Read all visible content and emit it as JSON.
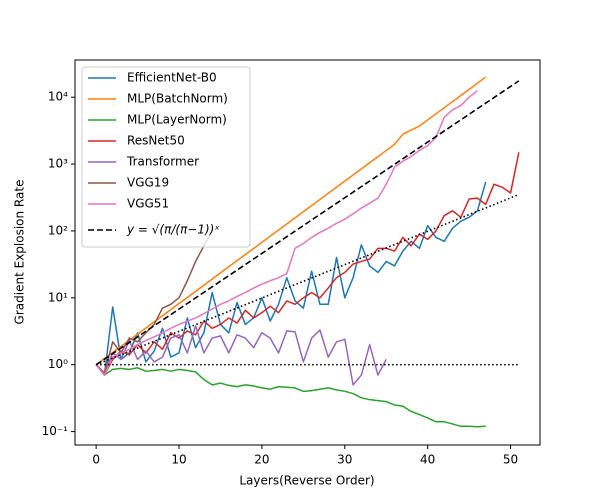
{
  "chart_data": {
    "type": "line",
    "xlabel": "Layers(Reverse Order)",
    "ylabel": "Gradient Explosion Rate",
    "xlim": [
      -2.55,
      53.55
    ],
    "xticks": [
      0,
      10,
      20,
      30,
      40,
      50
    ],
    "ylim": [
      0.063,
      36000
    ],
    "log_y": true,
    "yticks": [
      {
        "value": 0.1,
        "label": "10⁻¹"
      },
      {
        "value": 1,
        "label": "10⁰"
      },
      {
        "value": 10,
        "label": "10¹"
      },
      {
        "value": 100,
        "label": "10²"
      },
      {
        "value": 1000,
        "label": "10³"
      },
      {
        "value": 10000,
        "label": "10⁴"
      }
    ],
    "legend": "upper left",
    "series": [
      {
        "name": "EfficientNet-B0",
        "color": "#1f77b4",
        "linestyle": "solid",
        "x": [
          0,
          1,
          2,
          3,
          4,
          5,
          6,
          7,
          8,
          9,
          10,
          11,
          12,
          13,
          14,
          15,
          16,
          17,
          18,
          19,
          20,
          21,
          22,
          23,
          24,
          25,
          26,
          27,
          28,
          29,
          30,
          31,
          32,
          33,
          34,
          35,
          36,
          37,
          38,
          39,
          40,
          41,
          42,
          43,
          44,
          45,
          46,
          47
        ],
        "values": [
          1,
          0.7,
          7.3,
          1.2,
          1.5,
          3,
          1.1,
          1.6,
          3.5,
          1.3,
          1.5,
          5,
          1.8,
          3,
          12,
          4,
          3,
          8.5,
          4,
          5,
          10,
          4.5,
          8,
          20,
          9,
          7,
          25,
          8,
          8,
          40,
          10,
          20,
          62,
          30,
          24,
          35,
          30,
          50,
          70,
          55,
          120,
          80,
          70,
          110,
          140,
          160,
          200,
          540
        ]
      },
      {
        "name": "MLP(BatchNorm)",
        "color": "#ff7f0e",
        "linestyle": "solid",
        "x": [
          0,
          3,
          6,
          9,
          12,
          15,
          18,
          21,
          24,
          27,
          30,
          33,
          36,
          37,
          39,
          42,
          45,
          47
        ],
        "values": [
          1,
          1.88,
          3.54,
          6.66,
          12.5,
          23.6,
          44.4,
          83.5,
          157,
          296,
          556,
          1047,
          1970,
          2800,
          3700,
          6970,
          13100,
          20000
        ]
      },
      {
        "name": "MLP(LayerNorm)",
        "color": "#2ca02c",
        "linestyle": "solid",
        "x": [
          0,
          1,
          2,
          3,
          4,
          5,
          6,
          7,
          8,
          9,
          10,
          11,
          12,
          13,
          14,
          15,
          16,
          17,
          18,
          19,
          20,
          21,
          22,
          23,
          24,
          25,
          26,
          27,
          28,
          29,
          30,
          31,
          32,
          33,
          34,
          35,
          36,
          37,
          38,
          39,
          40,
          41,
          42,
          43,
          44,
          45,
          46,
          47
        ],
        "values": [
          1,
          0.7,
          0.85,
          0.88,
          0.85,
          0.9,
          0.8,
          0.82,
          0.85,
          0.8,
          0.85,
          0.82,
          0.78,
          0.6,
          0.5,
          0.53,
          0.49,
          0.47,
          0.5,
          0.48,
          0.45,
          0.43,
          0.47,
          0.46,
          0.45,
          0.4,
          0.41,
          0.43,
          0.45,
          0.42,
          0.4,
          0.37,
          0.32,
          0.3,
          0.29,
          0.28,
          0.25,
          0.24,
          0.2,
          0.18,
          0.16,
          0.14,
          0.14,
          0.13,
          0.12,
          0.12,
          0.118,
          0.12
        ]
      },
      {
        "name": "ResNet50",
        "color": "#d62728",
        "linestyle": "solid",
        "x": [
          0,
          1,
          2,
          3,
          4,
          5,
          6,
          7,
          8,
          9,
          10,
          11,
          12,
          13,
          14,
          15,
          16,
          17,
          18,
          19,
          20,
          21,
          22,
          23,
          24,
          25,
          26,
          27,
          28,
          29,
          30,
          31,
          32,
          33,
          34,
          35,
          36,
          37,
          38,
          39,
          40,
          41,
          42,
          43,
          44,
          45,
          46,
          47,
          48,
          49,
          50,
          51
        ],
        "values": [
          1,
          0.7,
          1.2,
          1.6,
          1.4,
          2,
          1.5,
          2.2,
          1.7,
          3,
          2.5,
          3.2,
          2.8,
          4.5,
          3.5,
          4,
          5,
          4.2,
          6.5,
          5,
          6,
          7.5,
          6,
          9,
          8,
          10,
          12,
          10,
          14,
          20,
          24,
          32,
          35,
          38,
          55,
          55,
          50,
          80,
          60,
          90,
          75,
          100,
          170,
          200,
          160,
          300,
          310,
          250,
          500,
          450,
          370,
          1500
        ]
      },
      {
        "name": "Transformer",
        "color": "#9467bd",
        "linestyle": "solid",
        "x": [
          0,
          1,
          2,
          3,
          4,
          5,
          6,
          7,
          8,
          9,
          10,
          11,
          12,
          13,
          14,
          15,
          16,
          17,
          18,
          19,
          20,
          21,
          22,
          23,
          24,
          25,
          26,
          27,
          28,
          29,
          30,
          31,
          32,
          33,
          34,
          35
        ],
        "values": [
          1,
          0.75,
          1.5,
          1.2,
          2.3,
          1.2,
          1.6,
          1.1,
          1.3,
          2.5,
          2.8,
          1.5,
          3.8,
          1.5,
          2.5,
          2.7,
          1.5,
          2.8,
          2.5,
          1.8,
          3,
          2.5,
          1.5,
          3.2,
          3.1,
          1.1,
          2.5,
          3.3,
          1.3,
          2.2,
          2.4,
          0.5,
          0.7,
          2,
          0.7,
          1.2
        ]
      },
      {
        "name": "VGG19",
        "color": "#8c564b",
        "linestyle": "solid",
        "x": [
          0,
          1,
          2,
          3,
          4,
          5,
          6,
          7,
          8,
          9,
          10,
          11,
          12,
          13,
          14
        ],
        "values": [
          1,
          0.75,
          2.2,
          1.5,
          2.5,
          2.2,
          3,
          4,
          7,
          8,
          10,
          18,
          35,
          60,
          100
        ]
      },
      {
        "name": "VGG51",
        "color": "#e377c2",
        "linestyle": "solid",
        "x": [
          0,
          1,
          2,
          3,
          4,
          5,
          6,
          7,
          8,
          9,
          10,
          11,
          12,
          13,
          14,
          15,
          16,
          17,
          18,
          19,
          20,
          21,
          22,
          23,
          24,
          25,
          26,
          27,
          28,
          29,
          30,
          31,
          32,
          33,
          34,
          35,
          36,
          37,
          38,
          39,
          40,
          41,
          42,
          43,
          44,
          45,
          46
        ],
        "values": [
          1,
          0.7,
          1.3,
          1.5,
          1.7,
          2,
          2.3,
          2.6,
          3,
          3.5,
          4,
          4.5,
          5,
          5.8,
          6.8,
          8,
          9,
          10.5,
          12,
          14,
          16,
          18,
          20,
          23,
          55,
          65,
          80,
          95,
          110,
          130,
          150,
          180,
          220,
          260,
          310,
          500,
          900,
          1100,
          1300,
          1600,
          1900,
          2500,
          5000,
          6500,
          7500,
          10000,
          12500
        ]
      },
      {
        "name": "y = √(π/(π−1))ˣ",
        "color": "#000000",
        "linestyle": "dashed",
        "x": [
          0,
          51
        ],
        "values": [
          1,
          17550
        ]
      },
      {
        "color": "#000000",
        "linestyle": "dotted",
        "x": [
          0,
          51
        ],
        "values": [
          1,
          350
        ]
      },
      {
        "color": "#000000",
        "linestyle": "dotted",
        "x": [
          0,
          51
        ],
        "values": [
          1,
          1
        ]
      }
    ]
  }
}
